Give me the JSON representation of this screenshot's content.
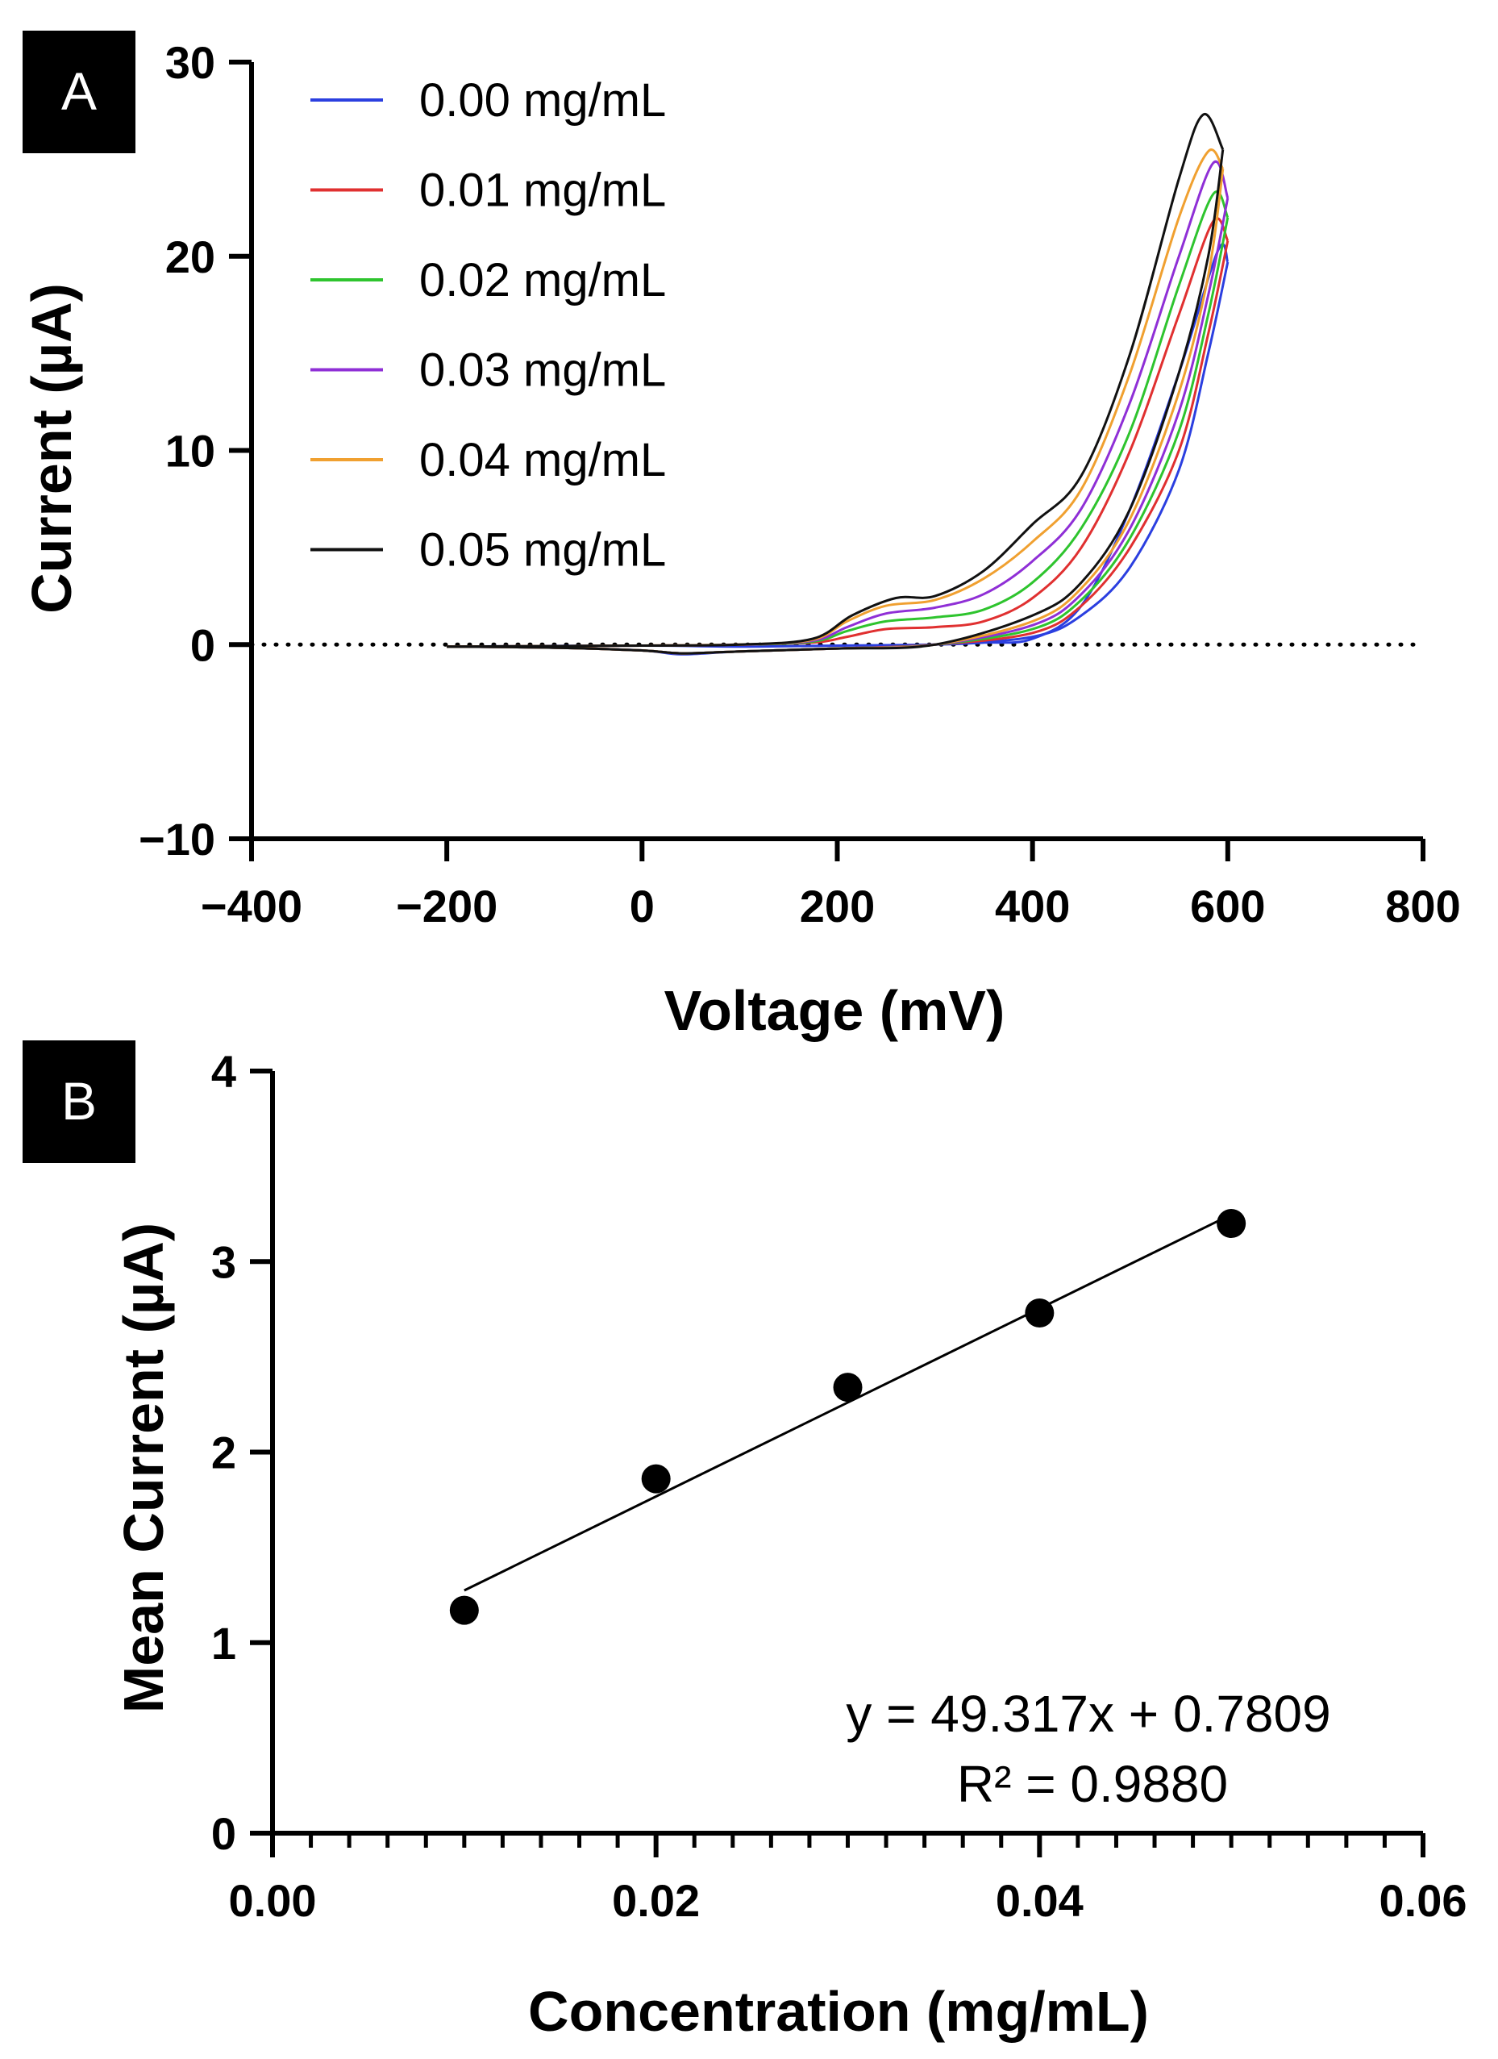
{
  "chart_data": [
    {
      "panel": "A",
      "type": "line",
      "xlabel": "Voltage (mV)",
      "ylabel": "Current (µA)",
      "xlim": [
        -400,
        800
      ],
      "ylim": [
        -10,
        30
      ],
      "xticks": [
        -400,
        -200,
        0,
        200,
        400,
        600,
        800
      ],
      "xtick_labels": [
        "−400",
        "−200",
        "0",
        "200",
        "400",
        "600",
        "800"
      ],
      "yticks": [
        -10,
        0,
        10,
        20,
        30
      ],
      "ytick_labels": [
        "−10",
        "0",
        "10",
        "20",
        "30"
      ],
      "reference_line": {
        "y": 0,
        "style": "dotted"
      },
      "legend_position": "top-left",
      "series": [
        {
          "name": "0.00 mg/mL",
          "color": "#2b3fe0",
          "forward": [
            [
              -200,
              -0.1
            ],
            [
              0,
              -0.05
            ],
            [
              100,
              -0.1
            ],
            [
              200,
              -0.05
            ],
            [
              300,
              0
            ],
            [
              350,
              0.1
            ],
            [
              400,
              0.3
            ],
            [
              450,
              2
            ],
            [
              500,
              7
            ],
            [
              550,
              14
            ],
            [
              590,
              20.3
            ],
            [
              600,
              19.7
            ]
          ],
          "reverse": [
            [
              600,
              19.7
            ],
            [
              580,
              15
            ],
            [
              550,
              9
            ],
            [
              500,
              4
            ],
            [
              450,
              1.5
            ],
            [
              400,
              0.4
            ],
            [
              300,
              0
            ],
            [
              200,
              -0.2
            ],
            [
              100,
              -0.35
            ],
            [
              40,
              -0.5
            ],
            [
              0,
              -0.3
            ],
            [
              -100,
              -0.15
            ],
            [
              -200,
              -0.1
            ]
          ]
        },
        {
          "name": "0.01 mg/mL",
          "color": "#e03030",
          "forward": [
            [
              -200,
              -0.1
            ],
            [
              0,
              -0.05
            ],
            [
              100,
              0
            ],
            [
              175,
              0.1
            ],
            [
              210,
              0.4
            ],
            [
              250,
              0.8
            ],
            [
              300,
              0.9
            ],
            [
              350,
              1.2
            ],
            [
              400,
              2.4
            ],
            [
              450,
              5
            ],
            [
              500,
              10
            ],
            [
              550,
              17
            ],
            [
              585,
              21.8
            ],
            [
              600,
              20.8
            ]
          ],
          "reverse": [
            [
              600,
              20.8
            ],
            [
              580,
              16
            ],
            [
              550,
              10
            ],
            [
              500,
              5
            ],
            [
              450,
              2
            ],
            [
              400,
              0.6
            ],
            [
              300,
              0
            ],
            [
              200,
              -0.2
            ],
            [
              100,
              -0.35
            ],
            [
              40,
              -0.45
            ],
            [
              0,
              -0.3
            ],
            [
              -100,
              -0.15
            ],
            [
              -200,
              -0.1
            ]
          ]
        },
        {
          "name": "0.02 mg/mL",
          "color": "#2ec42e",
          "forward": [
            [
              -200,
              -0.1
            ],
            [
              0,
              -0.05
            ],
            [
              100,
              0
            ],
            [
              175,
              0.15
            ],
            [
              210,
              0.7
            ],
            [
              250,
              1.2
            ],
            [
              300,
              1.4
            ],
            [
              350,
              1.8
            ],
            [
              400,
              3.2
            ],
            [
              450,
              6
            ],
            [
              500,
              11
            ],
            [
              550,
              18.5
            ],
            [
              585,
              23.2
            ],
            [
              600,
              22
            ]
          ],
          "reverse": [
            [
              600,
              22
            ],
            [
              580,
              17
            ],
            [
              550,
              11
            ],
            [
              500,
              5.5
            ],
            [
              450,
              2.3
            ],
            [
              400,
              0.8
            ],
            [
              300,
              0
            ],
            [
              200,
              -0.2
            ],
            [
              100,
              -0.35
            ],
            [
              40,
              -0.45
            ],
            [
              0,
              -0.3
            ],
            [
              -100,
              -0.15
            ],
            [
              -200,
              -0.1
            ]
          ]
        },
        {
          "name": "0.03 mg/mL",
          "color": "#8f2fd6",
          "forward": [
            [
              -200,
              -0.1
            ],
            [
              0,
              -0.05
            ],
            [
              100,
              0
            ],
            [
              175,
              0.2
            ],
            [
              210,
              0.9
            ],
            [
              250,
              1.6
            ],
            [
              300,
              1.9
            ],
            [
              350,
              2.6
            ],
            [
              400,
              4.3
            ],
            [
              450,
              7
            ],
            [
              500,
              12.5
            ],
            [
              550,
              20
            ],
            [
              585,
              24.8
            ],
            [
              600,
              23
            ]
          ],
          "reverse": [
            [
              600,
              23
            ],
            [
              580,
              18
            ],
            [
              550,
              12
            ],
            [
              500,
              6
            ],
            [
              450,
              2.6
            ],
            [
              400,
              1
            ],
            [
              300,
              0
            ],
            [
              200,
              -0.2
            ],
            [
              100,
              -0.35
            ],
            [
              40,
              -0.45
            ],
            [
              0,
              -0.3
            ],
            [
              -100,
              -0.15
            ],
            [
              -200,
              -0.1
            ]
          ]
        },
        {
          "name": "0.04 mg/mL",
          "color": "#f0a030",
          "forward": [
            [
              -200,
              -0.1
            ],
            [
              0,
              -0.05
            ],
            [
              100,
              0
            ],
            [
              175,
              0.25
            ],
            [
              210,
              1.2
            ],
            [
              250,
              2
            ],
            [
              300,
              2.3
            ],
            [
              350,
              3.4
            ],
            [
              400,
              5.3
            ],
            [
              450,
              8
            ],
            [
              500,
              14
            ],
            [
              550,
              22
            ],
            [
              580,
              25.4
            ],
            [
              595,
              24.5
            ]
          ],
          "reverse": [
            [
              595,
              24.5
            ],
            [
              580,
              19
            ],
            [
              550,
              13
            ],
            [
              500,
              6.5
            ],
            [
              450,
              2.9
            ],
            [
              400,
              1.2
            ],
            [
              300,
              0
            ],
            [
              200,
              -0.2
            ],
            [
              100,
              -0.35
            ],
            [
              40,
              -0.45
            ],
            [
              0,
              -0.3
            ],
            [
              -100,
              -0.15
            ],
            [
              -200,
              -0.1
            ]
          ]
        },
        {
          "name": "0.05 mg/mL",
          "color": "#111111",
          "forward": [
            [
              -200,
              -0.1
            ],
            [
              0,
              -0.05
            ],
            [
              100,
              0
            ],
            [
              175,
              0.3
            ],
            [
              215,
              1.5
            ],
            [
              260,
              2.4
            ],
            [
              300,
              2.5
            ],
            [
              350,
              3.8
            ],
            [
              400,
              6.2
            ],
            [
              450,
              8.7
            ],
            [
              500,
              15
            ],
            [
              550,
              24
            ],
            [
              575,
              27.3
            ],
            [
              595,
              25.5
            ]
          ],
          "reverse": [
            [
              595,
              25.5
            ],
            [
              580,
              20
            ],
            [
              550,
              14
            ],
            [
              500,
              7
            ],
            [
              450,
              3.2
            ],
            [
              400,
              1.5
            ],
            [
              300,
              0
            ],
            [
              200,
              -0.2
            ],
            [
              100,
              -0.35
            ],
            [
              40,
              -0.45
            ],
            [
              0,
              -0.3
            ],
            [
              -100,
              -0.15
            ],
            [
              -200,
              -0.1
            ]
          ]
        }
      ]
    },
    {
      "panel": "B",
      "type": "scatter",
      "xlabel": "Concentration (mg/mL)",
      "ylabel": "Mean Current (µA)",
      "xlim": [
        0,
        0.06
      ],
      "ylim": [
        0,
        4
      ],
      "xticks": [
        0,
        0.02,
        0.04,
        0.06
      ],
      "xtick_labels": [
        "0.00",
        "0.02",
        "0.04",
        "0.06"
      ],
      "yticks": [
        0,
        1,
        2,
        3,
        4
      ],
      "ytick_labels": [
        "0",
        "1",
        "2",
        "3",
        "4"
      ],
      "x_minor_step": 0.002,
      "points": [
        {
          "x": 0.01,
          "y": 1.17
        },
        {
          "x": 0.02,
          "y": 1.86
        },
        {
          "x": 0.03,
          "y": 2.34
        },
        {
          "x": 0.04,
          "y": 2.73
        },
        {
          "x": 0.05,
          "y": 3.2
        }
      ],
      "fit": {
        "slope": 49.317,
        "intercept": 0.7809,
        "x_range": [
          0.01,
          0.05
        ]
      },
      "equation": "y = 49.317x + 0.7809",
      "r_squared": "R² = 0.9880"
    }
  ]
}
